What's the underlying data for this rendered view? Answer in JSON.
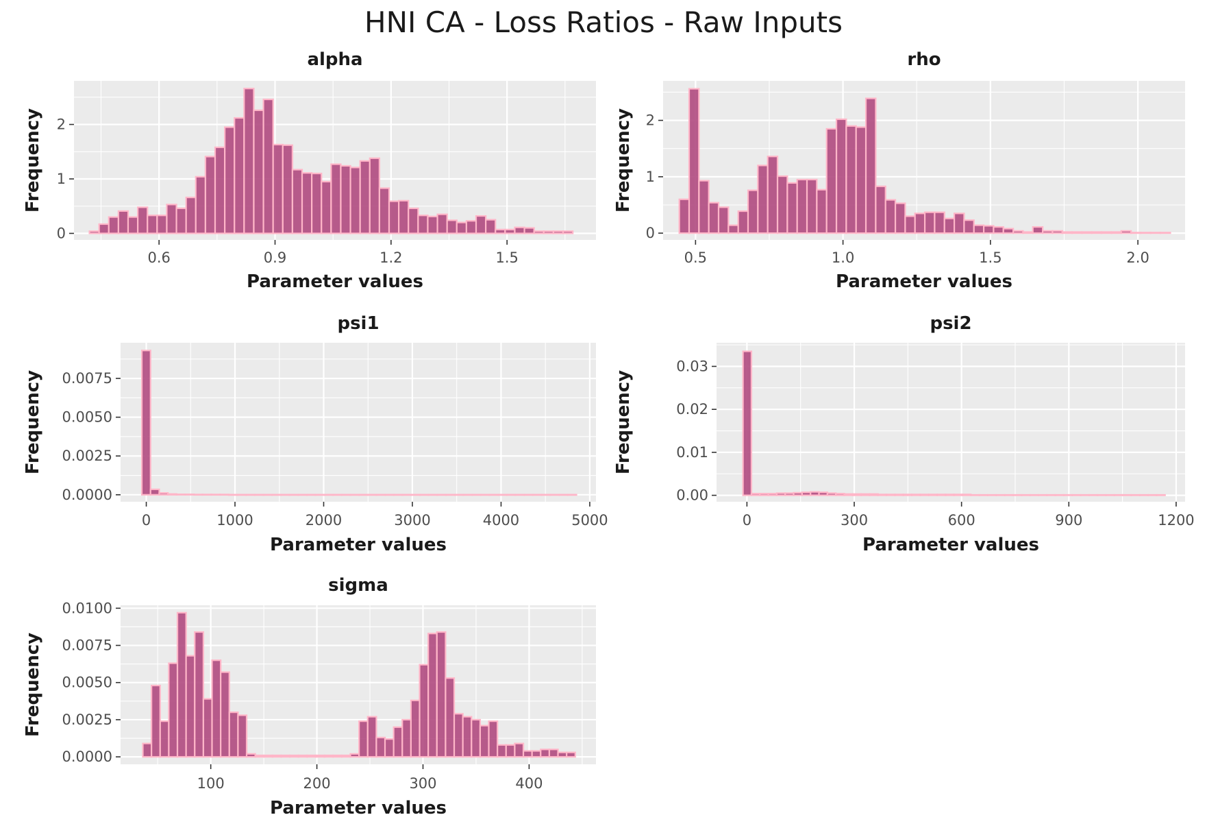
{
  "title": "HNI CA - Loss Ratios - Raw Inputs",
  "colors": {
    "bar_fill": "#b04a80",
    "bar_outline": "#ffb6c8",
    "panel_bg": "#ebebeb",
    "grid": "#ffffff"
  },
  "chart_data": [
    {
      "type": "bar",
      "title": "alpha",
      "xlabel": "Parameter values",
      "ylabel": "Frequency",
      "xlim": [
        0.38,
        1.73
      ],
      "ylim": [
        -0.12,
        2.8
      ],
      "xticks": [
        0.6,
        0.9,
        1.2,
        1.5
      ],
      "xtick_labels": [
        "0.6",
        "0.9",
        "1.2",
        "1.5"
      ],
      "yticks": [
        0,
        1,
        2
      ],
      "ytick_labels": [
        "0",
        "1",
        "2"
      ],
      "bin_start": 0.42,
      "bin_width": 0.025,
      "values": [
        0.04,
        0.17,
        0.3,
        0.41,
        0.3,
        0.48,
        0.33,
        0.33,
        0.53,
        0.46,
        0.66,
        1.04,
        1.41,
        1.58,
        1.95,
        2.12,
        2.66,
        2.26,
        2.46,
        1.63,
        1.62,
        1.17,
        1.11,
        1.1,
        0.95,
        1.27,
        1.24,
        1.21,
        1.33,
        1.38,
        0.83,
        0.59,
        0.6,
        0.46,
        0.33,
        0.31,
        0.35,
        0.24,
        0.2,
        0.23,
        0.32,
        0.25,
        0.07,
        0.07,
        0.11,
        0.1,
        0.04,
        0.04,
        0.04,
        0.04
      ]
    },
    {
      "type": "bar",
      "title": "rho",
      "xlabel": "Parameter values",
      "ylabel": "Frequency",
      "xlim": [
        0.39,
        2.16
      ],
      "ylim": [
        -0.12,
        2.7
      ],
      "xticks": [
        0.5,
        1.0,
        1.5,
        2.0
      ],
      "xtick_labels": [
        "0.5",
        "1.0",
        "1.5",
        "2.0"
      ],
      "yticks": [
        0,
        1,
        2
      ],
      "ytick_labels": [
        "0",
        "1",
        "2"
      ],
      "bin_start": 0.445,
      "bin_width": 0.0333,
      "values": [
        0.6,
        2.56,
        0.93,
        0.54,
        0.46,
        0.14,
        0.39,
        0.76,
        1.2,
        1.36,
        1.01,
        0.89,
        0.95,
        0.95,
        0.77,
        1.85,
        2.02,
        1.9,
        1.88,
        2.39,
        0.83,
        0.59,
        0.53,
        0.3,
        0.35,
        0.37,
        0.37,
        0.26,
        0.35,
        0.23,
        0.14,
        0.13,
        0.11,
        0.08,
        0.04,
        0.02,
        0.11,
        0.04,
        0.04,
        0.02,
        0.02,
        0.02,
        0.02,
        0.02,
        0.02,
        0.04,
        0.01,
        0.01,
        0.01,
        0.01
      ]
    },
    {
      "type": "bar",
      "title": "psi1",
      "xlabel": "Parameter values",
      "ylabel": "Frequency",
      "xlim": [
        -290,
        5070
      ],
      "ylim": [
        -0.00045,
        0.0098
      ],
      "xticks": [
        0,
        1000,
        2000,
        3000,
        4000,
        5000
      ],
      "xtick_labels": [
        "0",
        "1000",
        "2000",
        "3000",
        "4000",
        "5000"
      ],
      "yticks": [
        0,
        0.0025,
        0.005,
        0.0075
      ],
      "ytick_labels": [
        "0.0000",
        "0.0025",
        "0.0050",
        "0.0075"
      ],
      "bin_start": -50,
      "bin_width": 98,
      "values": [
        0.0093,
        0.00035,
        0.00012,
        5e-05,
        3e-05,
        3e-05,
        2e-05,
        2e-05,
        2e-05,
        2e-05,
        1e-05,
        1e-05,
        1e-05,
        1e-05,
        1e-05,
        1e-05,
        1e-05,
        1e-05,
        1e-05,
        1e-05,
        1e-05,
        1e-05,
        1e-05,
        1e-05,
        1e-05,
        1e-05,
        1e-05,
        1e-05,
        1e-05,
        1e-05,
        1e-05,
        1e-05,
        1e-05,
        1e-05,
        1e-05,
        1e-05,
        1e-05,
        1e-05,
        1e-05,
        1e-05,
        1e-05,
        1e-05,
        1e-05,
        1e-05,
        1e-05,
        1e-05,
        1e-05,
        1e-05,
        1e-05,
        1e-05
      ]
    },
    {
      "type": "bar",
      "title": "psi2",
      "xlabel": "Parameter values",
      "ylabel": "Frequency",
      "xlim": [
        -85,
        1225
      ],
      "ylim": [
        -0.0015,
        0.0355
      ],
      "xticks": [
        0,
        300,
        600,
        900,
        1200
      ],
      "xtick_labels": [
        "0",
        "300",
        "600",
        "900",
        "1200"
      ],
      "yticks": [
        0,
        0.01,
        0.02,
        0.03
      ],
      "ytick_labels": [
        "0.00",
        "0.01",
        "0.02",
        "0.03"
      ],
      "bin_start": -11,
      "bin_width": 23.6,
      "values": [
        0.0335,
        0.0004,
        0.0004,
        0.0004,
        0.0005,
        0.0005,
        0.0006,
        0.0007,
        0.0008,
        0.0007,
        0.0005,
        0.0004,
        0.0003,
        0.0003,
        0.0003,
        0.0003,
        0.0002,
        0.0002,
        0.0002,
        0.0002,
        0.0002,
        0.0002,
        0.0002,
        0.0002,
        0.0002,
        0.0002,
        0.0002,
        0.0001,
        0.0001,
        0.0001,
        0.0001,
        0.0001,
        0.0001,
        0.0001,
        0.0001,
        0.0001,
        0.0001,
        0.0001,
        0.0001,
        0.0001,
        0.0001,
        0.0001,
        0.0001,
        0.0001,
        0.0001,
        0.0001,
        0.0001,
        0.0001,
        0.0001,
        0.0001
      ]
    },
    {
      "type": "bar",
      "title": "sigma",
      "xlabel": "Parameter values",
      "ylabel": "Frequency",
      "xlim": [
        15,
        463
      ],
      "ylim": [
        -0.0005,
        0.0102
      ],
      "xticks": [
        100,
        200,
        300,
        400
      ],
      "xtick_labels": [
        "100",
        "200",
        "300",
        "400"
      ],
      "yticks": [
        0,
        0.0025,
        0.005,
        0.0075,
        0.01
      ],
      "ytick_labels": [
        "0.0000",
        "0.0025",
        "0.0050",
        "0.0075",
        "0.0100"
      ],
      "bin_start": 36,
      "bin_width": 8.15,
      "values": [
        0.0009,
        0.0048,
        0.0024,
        0.0063,
        0.0097,
        0.0068,
        0.0084,
        0.0039,
        0.0065,
        0.0057,
        0.003,
        0.0028,
        0.0002,
        0.0001,
        0.0001,
        0.0001,
        0.0001,
        0.0001,
        0.0001,
        0.0001,
        0.0001,
        0.0001,
        0.0001,
        0.0001,
        0.0002,
        0.0024,
        0.0027,
        0.0013,
        0.0012,
        0.002,
        0.0025,
        0.0038,
        0.0062,
        0.0083,
        0.0084,
        0.0053,
        0.0029,
        0.0027,
        0.0025,
        0.0021,
        0.0024,
        0.0008,
        0.0008,
        0.0009,
        0.0004,
        0.0004,
        0.0005,
        0.0005,
        0.0003,
        0.0003
      ]
    }
  ]
}
